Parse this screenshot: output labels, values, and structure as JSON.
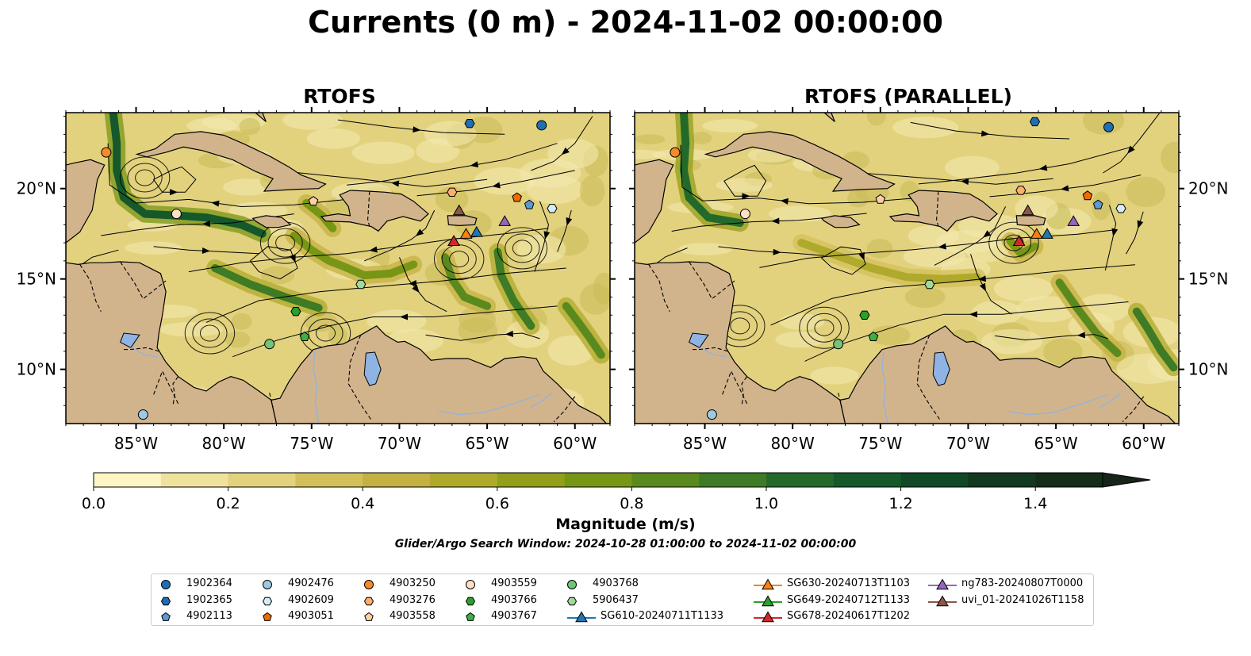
{
  "title": "Currents (0 m) - 2024-11-02 00:00:00",
  "panels": [
    {
      "id": "left",
      "title": "RTOFS"
    },
    {
      "id": "right",
      "title": "RTOFS (PARALLEL)"
    }
  ],
  "axes": {
    "x_ticks": [
      {
        "value": -85,
        "label": "85°W"
      },
      {
        "value": -80,
        "label": "80°W"
      },
      {
        "value": -75,
        "label": "75°W"
      },
      {
        "value": -70,
        "label": "70°W"
      },
      {
        "value": -65,
        "label": "65°W"
      },
      {
        "value": -60,
        "label": "60°W"
      }
    ],
    "y_ticks": [
      {
        "value": 20,
        "label": "20°N"
      },
      {
        "value": 15,
        "label": "15°N"
      },
      {
        "value": 10,
        "label": "10°N"
      }
    ],
    "lon_range": [
      -89,
      -58
    ],
    "lat_range": [
      7,
      24.2
    ]
  },
  "colorbar": {
    "label": "Magnitude (m/s)",
    "range": [
      0,
      1.5
    ],
    "extend": "max",
    "ticks": [
      "0.0",
      "0.2",
      "0.4",
      "0.6",
      "0.8",
      "1.0",
      "1.2",
      "1.4"
    ],
    "colors": [
      "#fdf5c4",
      "#efe29c",
      "#e2d27e",
      "#d3bf59",
      "#c4b043",
      "#afaa2c",
      "#939e1a",
      "#789615",
      "#5a8a1e",
      "#3e7b24",
      "#236a2a",
      "#15592b",
      "#104926",
      "#12391f",
      "#142c18",
      "#172417"
    ]
  },
  "search_window": "Glider/Argo Search Window: 2024-10-28 01:00:00 to 2024-11-02 00:00:00",
  "legend": [
    {
      "label": "1902364",
      "shape": "circle",
      "color": "#1f6fb4"
    },
    {
      "label": "1902365",
      "shape": "hexagon",
      "color": "#1f6fb4"
    },
    {
      "label": "4902113",
      "shape": "pentagon",
      "color": "#5b9bd5"
    },
    {
      "label": "4902476",
      "shape": "circle",
      "color": "#9ecae1"
    },
    {
      "label": "4902609",
      "shape": "hexagon",
      "color": "#d6ebf8"
    },
    {
      "label": "4903051",
      "shape": "pentagon",
      "color": "#ef6c00"
    },
    {
      "label": "4903250",
      "shape": "circle",
      "color": "#f58a2a"
    },
    {
      "label": "4903276",
      "shape": "hexagon",
      "color": "#fdae6b"
    },
    {
      "label": "4903558",
      "shape": "pentagon",
      "color": "#fdd0a2"
    },
    {
      "label": "4903559",
      "shape": "circle",
      "color": "#fde0c5"
    },
    {
      "label": "4903766",
      "shape": "hexagon",
      "color": "#2ca02c"
    },
    {
      "label": "4903767",
      "shape": "pentagon",
      "color": "#3cb043"
    },
    {
      "label": "4903768",
      "shape": "circle",
      "color": "#74c476"
    },
    {
      "label": "5906437",
      "shape": "hexagon",
      "color": "#a1d99b"
    },
    {
      "label": "SG610-20240711T1133",
      "shape": "triangle",
      "color": "#1f77b4"
    },
    {
      "label": "SG630-20240713T1103",
      "shape": "triangle",
      "color": "#ff7f0e"
    },
    {
      "label": "SG649-20240712T1133",
      "shape": "triangle",
      "color": "#2ca02c"
    },
    {
      "label": "SG678-20240617T1202",
      "shape": "triangle",
      "color": "#d62728"
    },
    {
      "label": "ng783-20240807T0000",
      "shape": "triangle",
      "color": "#9467bd"
    },
    {
      "label": "uvi_01-20241026T1158",
      "shape": "triangle",
      "color": "#8c564b"
    }
  ],
  "map_layers": {
    "land_color": "#d2b48c",
    "lake_color": "#8fb4e3",
    "river_color": "#9bb3d1",
    "ocean_base_color": "#e2d27e"
  }
}
